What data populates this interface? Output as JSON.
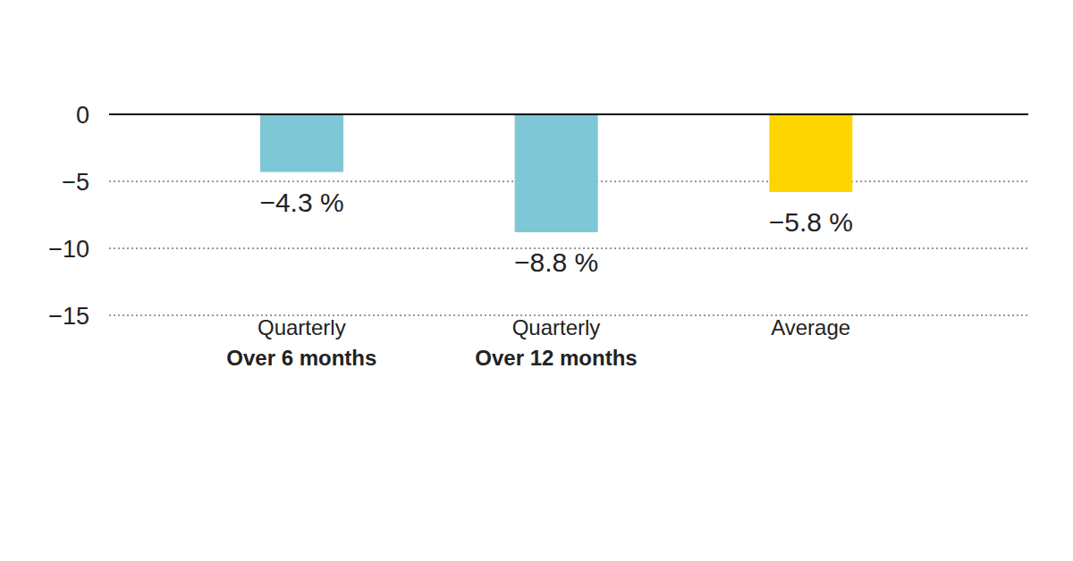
{
  "chart_data": {
    "type": "bar",
    "categories": [
      "Quarterly\nOver 6 months",
      "Quarterly\nOver 12 months",
      "Average"
    ],
    "values": [
      -4.3,
      -8.8,
      -5.8
    ],
    "value_labels": [
      "−4.3 %",
      "−8.8 %",
      "−5.8 %"
    ],
    "colors": [
      "#7ec7d6",
      "#7ec7d6",
      "#ffd500"
    ],
    "ylim": [
      -15,
      0
    ],
    "yticks": [
      0,
      {
        "value": -5,
        "label": "−5"
      },
      {
        "value": -10,
        "label": "−10"
      },
      {
        "value": -15,
        "label": "−15"
      }
    ],
    "grid": true,
    "data_labels": true
  }
}
